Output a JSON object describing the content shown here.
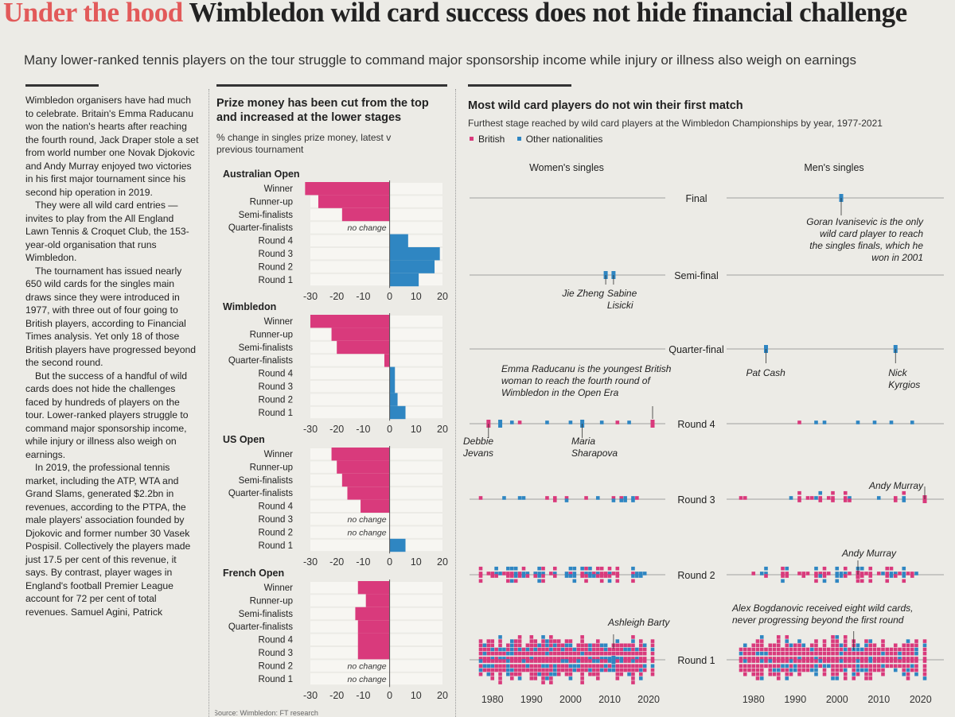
{
  "header": {
    "kicker": "Under the hood",
    "title": "Wimbledon wild card success does not hide financial challenge",
    "standfirst": "Many lower-ranked tennis players on the tour struggle to command major sponsorship income while injury or illness also weigh on earnings"
  },
  "article": {
    "paragraphs": [
      "Wimbledon organisers have had much to celebrate. Britain's Emma Raducanu won the nation's hearts after reaching the fourth round, Jack Draper stole a set from world number one Novak Djokovic and Andy Murray enjoyed two victories in his first major tournament since his second hip operation in 2019.",
      "They were all wild card entries — invites to play from the All England Lawn Tennis & Croquet Club, the 153-year-old organisation that runs Wimbledon.",
      "The tournament has issued nearly 650 wild cards for the singles main draws since they were introduced in 1977, with three out of four going to British players, according to Financial Times analysis. Yet only 18 of those British players have progressed beyond the second round.",
      "But the success of a handful of wild cards does not hide the challenges faced by hundreds of players on the tour. Lower-ranked players struggle to command major sponsorship income, while injury or illness also weigh on earnings.",
      "In 2019, the professional tennis market, including the ATP, WTA and Grand Slams, generated $2.2bn in revenues, according to the PTPA, the male players' association founded by Djokovic and former number 30 Vasek Pospisil. Collectively the players made just 17.5 per cent of this revenue, it says. By contrast, player wages in England's football Premier League account for 72 per cent of total revenues. Samuel Agini, Patrick"
    ]
  },
  "colors": {
    "pink": "#d93a7c",
    "blue": "#2f86c2",
    "band": "#f7f6f2"
  },
  "prize_panel": {
    "title": "Prize money has been cut from the top and increased at the lower stages",
    "subtitle": "% change in singles prize money, latest v previous tournament",
    "source": "Source: Wimbledon; FT research"
  },
  "wildcard_panel": {
    "title": "Most wild card players do not win their first match",
    "subtitle": "Furthest stage reached by wild card players at the Wimbledon Championships by year, 1977-2021",
    "legend": {
      "british": "British",
      "other": "Other nationalities"
    },
    "women_label": "Women's singles",
    "men_label": "Men's singles"
  },
  "chart_data": [
    {
      "type": "bar",
      "title": "Prize money has been cut from the top and increased at the lower stages",
      "ylabel": "% change in singles prize money, latest v previous tournament",
      "categories": [
        "Winner",
        "Runner-up",
        "Semi-finalists",
        "Quarter-finalists",
        "Round 4",
        "Round 3",
        "Round 2",
        "Round 1"
      ],
      "xlim": [
        -30,
        20
      ],
      "xticks": [
        "-30",
        "-20",
        "-10",
        "0",
        "10",
        "20"
      ],
      "no_change_label": "no change",
      "series": [
        {
          "name": "Australian Open",
          "values": [
            -32,
            -27,
            -18,
            0,
            7,
            19,
            17,
            11
          ]
        },
        {
          "name": "Wimbledon",
          "values": [
            -30,
            -22,
            -20,
            -2,
            2,
            2,
            3,
            6
          ]
        },
        {
          "name": "US Open",
          "values": [
            -22,
            -20,
            -18,
            -16,
            -11,
            0,
            0,
            6
          ]
        },
        {
          "name": "French Open",
          "values": [
            -12,
            -9,
            -13,
            -12,
            -12,
            -12,
            0,
            0
          ]
        }
      ]
    },
    {
      "type": "scatter",
      "title": "Most wild card players do not win their first match",
      "subtitle": "Furthest stage reached by wild card players at the Wimbledon Championships by year, 1977-2021",
      "x_ticks": [
        "1980",
        "1990",
        "2000",
        "2010",
        "2020"
      ],
      "xlim": [
        1977,
        2021
      ],
      "stages": [
        "Final",
        "Semi-final",
        "Quarter-final",
        "Round 4",
        "Round 3",
        "Round 2",
        "Round 1"
      ],
      "women_highlights": [
        {
          "year": 2009,
          "stage": "Semi-final",
          "nat": "other"
        },
        {
          "year": 2011,
          "stage": "Semi-final",
          "nat": "other"
        },
        {
          "year": 1979,
          "stage": "Round 4",
          "nat": "british"
        },
        {
          "year": 1982,
          "stage": "Round 4",
          "nat": "other"
        },
        {
          "year": 2003,
          "stage": "Round 4",
          "nat": "other"
        },
        {
          "year": 2021,
          "stage": "Round 4",
          "nat": "british"
        },
        {
          "year": 2011,
          "stage": "Round 1",
          "nat": "other"
        }
      ],
      "men_highlights": [
        {
          "year": 2001,
          "stage": "Final",
          "nat": "other"
        },
        {
          "year": 1983,
          "stage": "Quarter-final",
          "nat": "other"
        },
        {
          "year": 2014,
          "stage": "Quarter-final",
          "nat": "other"
        },
        {
          "year": 2021,
          "stage": "Round 3",
          "nat": "british"
        },
        {
          "year": 2005,
          "stage": "Round 2",
          "nat": "british"
        }
      ],
      "annotations": {
        "ivanisevic": "Goran Ivanisevic is the only wild card player to reach the singles finals, which he won in 2001",
        "jie_zheng": "Jie Zheng",
        "sabine": "Sabine Lisicki",
        "pat_cash": "Pat Cash",
        "nick": "Nick Kyrgios",
        "raducanu": "Emma Raducanu is the youngest British woman to reach the fourth round of Wimbledon in the Open Era",
        "debbie": "Debbie Jevans",
        "maria": "Maria Sharapova",
        "murray3": "Andy Murray",
        "murray2": "Andy Murray",
        "barty": "Ashleigh Barty",
        "bogdanovic": "Alex Bogdanovic received eight wild cards, never progressing beyond the first round"
      }
    }
  ]
}
